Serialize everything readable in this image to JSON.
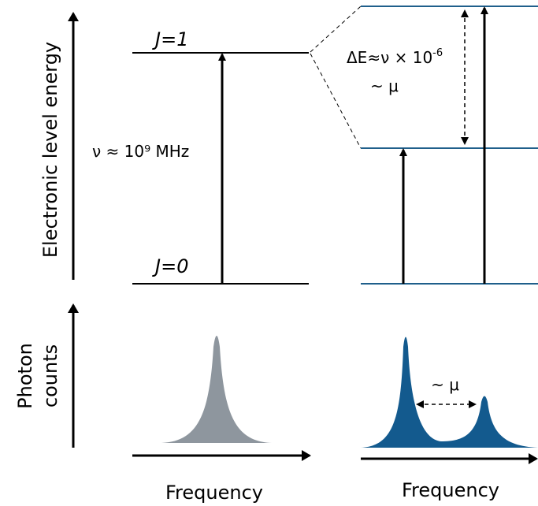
{
  "energy_axis_label": "Electronic level energy",
  "levels": [
    {
      "label": "J=1"
    },
    {
      "label": "J=0"
    }
  ],
  "transition_label": "ν ≈ 10⁹ MHz",
  "splitting": {
    "label": "ΔE≈ν × 10",
    "exponent": "-6",
    "scaling": "~ μ"
  },
  "spectrum": {
    "y_label": [
      "Photon",
      "counts"
    ],
    "x_labels": [
      "Frequency",
      "Frequency"
    ],
    "separation_label": "~ μ"
  }
}
